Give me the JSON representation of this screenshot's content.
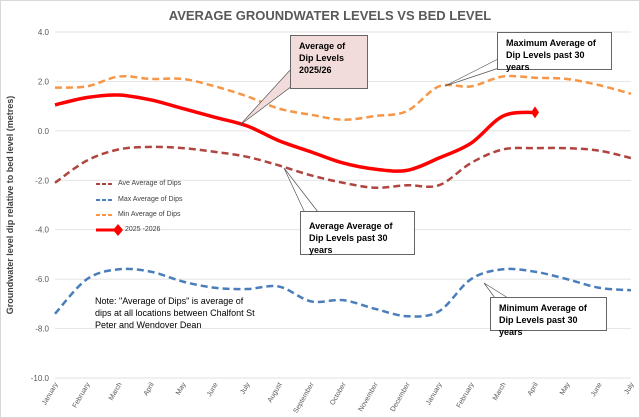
{
  "chart_data": {
    "type": "line",
    "title": "AVERAGE GROUNDWATER LEVELS VS BED LEVEL",
    "y_label": "Groundwater level dip relative to bed level (metres)",
    "categories": [
      "January",
      "February",
      "March",
      "April",
      "May",
      "June",
      "July",
      "August",
      "September",
      "October",
      "November",
      "December",
      "January",
      "February",
      "March",
      "April",
      "May",
      "June",
      "July"
    ],
    "series": [
      {
        "name": "Ave Average of Dips",
        "color": "#b04540",
        "dash": true,
        "values": [
          -2.1,
          -1.2,
          -0.75,
          -0.65,
          -0.7,
          -0.85,
          -1.05,
          -1.4,
          -1.8,
          -2.1,
          -2.3,
          -2.2,
          -2.2,
          -1.3,
          -0.75,
          -0.7,
          -0.7,
          -0.8,
          -1.1
        ]
      },
      {
        "name": "Max Average of Dips",
        "color": "#4a7ebb",
        "dash": true,
        "values": [
          -7.4,
          -6.0,
          -5.6,
          -5.7,
          -6.1,
          -6.35,
          -6.4,
          -6.3,
          -6.9,
          -6.85,
          -7.2,
          -7.5,
          -7.3,
          -6.0,
          -5.6,
          -5.7,
          -6.0,
          -6.35,
          -6.45
        ]
      },
      {
        "name": "Min Average of Dips",
        "color": "#f79646",
        "dash": true,
        "values": [
          1.75,
          1.8,
          2.2,
          2.1,
          2.1,
          1.8,
          1.4,
          0.9,
          0.65,
          0.45,
          0.6,
          0.8,
          1.8,
          1.8,
          2.2,
          2.15,
          2.1,
          1.85,
          1.5
        ]
      },
      {
        "name": "2025 -2026",
        "color": "#ff0000",
        "dash": false,
        "marker": "diamond",
        "values": [
          1.05,
          1.35,
          1.45,
          1.25,
          0.9,
          0.55,
          0.2,
          -0.4,
          -0.85,
          -1.3,
          -1.55,
          -1.6,
          -1.1,
          -0.5,
          0.6,
          0.75,
          null,
          null,
          null
        ]
      }
    ],
    "ylim": [
      -10,
      4
    ],
    "yticks": [
      {
        "value": 4,
        "label": "4.0"
      },
      {
        "value": 2,
        "label": "2.0"
      },
      {
        "value": 0,
        "label": "0.0"
      },
      {
        "value": -2,
        "label": "-2.0"
      },
      {
        "value": -4,
        "label": "-4.0"
      },
      {
        "value": -6,
        "label": "-6.0"
      },
      {
        "value": -8,
        "label": "-8.0"
      },
      {
        "value": -10,
        "label": "-10.0"
      }
    ],
    "annotations": [
      "Average of Dip Levels 2025/26",
      "Maximum Average of Dip Levels  past 30 years",
      "Average Average of Dip Levels  past 30 years",
      "Minimum Average of Dip Levels  past 30 years"
    ],
    "note": "Note: \"Average of Dips\" is average of dips at all locations between Chalfont St Peter and Wendover Dean"
  }
}
